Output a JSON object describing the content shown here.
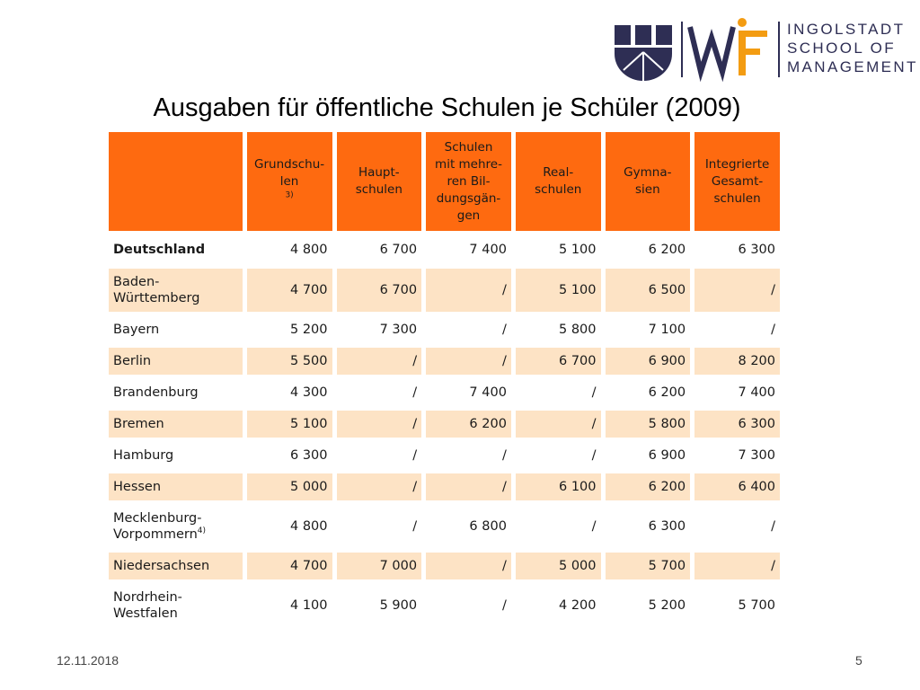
{
  "logo": {
    "lines": [
      "INGOLSTADT",
      "SCHOOL OF",
      "MANAGEMENT"
    ],
    "brand_navy": "#2e2e54",
    "brand_orange": "#f39c12"
  },
  "slide": {
    "title": "Ausgaben für öffentliche Schulen je Schüler (2009)",
    "date": "12.11.2018",
    "page_number": "5"
  },
  "table": {
    "header_color": "#fe6a10",
    "shade_color": "#fde3c5",
    "columns": [
      {
        "label": "Grundschu-\nlen",
        "footnote": "3)"
      },
      {
        "label": "Haupt-\nschulen",
        "footnote": ""
      },
      {
        "label": "Schulen\nmit mehre-\nren Bil-\ndungsgän-\ngen",
        "footnote": ""
      },
      {
        "label": "Real-\nschulen",
        "footnote": ""
      },
      {
        "label": "Gymna-\nsien",
        "footnote": ""
      },
      {
        "label": "Integrierte\nGesamt-\nschulen",
        "footnote": ""
      }
    ],
    "rows": [
      {
        "name": "Deutschland",
        "footnote": "",
        "values": [
          "4 800",
          "6 700",
          "7 400",
          "5 100",
          "6 200",
          "6 300"
        ]
      },
      {
        "name": "Baden-\nWürttemberg",
        "footnote": "",
        "values": [
          "4 700",
          "6 700",
          "/",
          "5 100",
          "6 500",
          "/"
        ]
      },
      {
        "name": "Bayern",
        "footnote": "",
        "values": [
          "5 200",
          "7 300",
          "/",
          "5 800",
          "7 100",
          "/"
        ]
      },
      {
        "name": "Berlin",
        "footnote": "",
        "values": [
          "5 500",
          "/",
          "/",
          "6 700",
          "6 900",
          "8 200"
        ]
      },
      {
        "name": "Brandenburg",
        "footnote": "",
        "values": [
          "4 300",
          "/",
          "7 400",
          "/",
          "6 200",
          "7 400"
        ]
      },
      {
        "name": "Bremen",
        "footnote": "",
        "values": [
          "5 100",
          "/",
          "6 200",
          "/",
          "5 800",
          "6 300"
        ]
      },
      {
        "name": "Hamburg",
        "footnote": "",
        "values": [
          "6 300",
          "/",
          "/",
          "/",
          "6 900",
          "7 300"
        ]
      },
      {
        "name": "Hessen",
        "footnote": "",
        "values": [
          "5 000",
          "/",
          "/",
          "6 100",
          "6 200",
          "6 400"
        ]
      },
      {
        "name": "Mecklenburg-\nVorpommern",
        "footnote": "4)",
        "values": [
          "4 800",
          "/",
          "6 800",
          "/",
          "6 300",
          "/"
        ]
      },
      {
        "name": "Niedersachsen",
        "footnote": "",
        "values": [
          "4 700",
          "7 000",
          "/",
          "5 000",
          "5 700",
          "/"
        ]
      },
      {
        "name": "Nordrhein-\nWestfalen",
        "footnote": "",
        "values": [
          "4 100",
          "5 900",
          "/",
          "4 200",
          "5 200",
          "5 700"
        ]
      }
    ]
  }
}
